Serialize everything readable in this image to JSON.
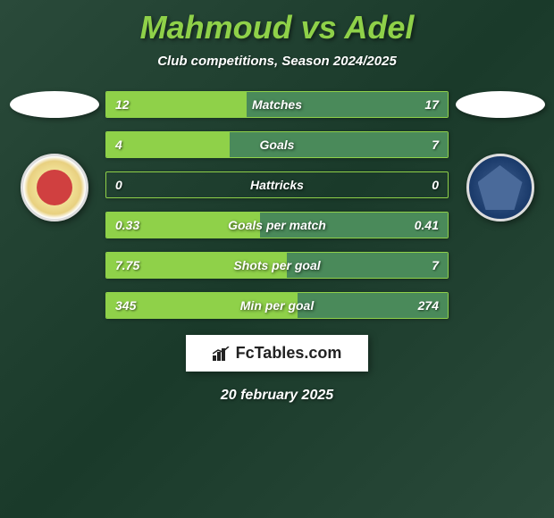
{
  "title": "Mahmoud vs Adel",
  "subtitle": "Club competitions, Season 2024/2025",
  "date": "20 february 2025",
  "footer_text": "FcTables.com",
  "colors": {
    "accent": "#8fd149",
    "background_dark": "#1a3a2a",
    "fill_right": "#4a8a5a",
    "text": "#ffffff"
  },
  "stats": [
    {
      "label": "Matches",
      "left_value": "12",
      "right_value": "17",
      "left_pct": 41,
      "right_pct": 59
    },
    {
      "label": "Goals",
      "left_value": "4",
      "right_value": "7",
      "left_pct": 36,
      "right_pct": 64
    },
    {
      "label": "Hattricks",
      "left_value": "0",
      "right_value": "0",
      "left_pct": 0,
      "right_pct": 0
    },
    {
      "label": "Goals per match",
      "left_value": "0.33",
      "right_value": "0.41",
      "left_pct": 45,
      "right_pct": 55
    },
    {
      "label": "Shots per goal",
      "left_value": "7.75",
      "right_value": "7",
      "left_pct": 53,
      "right_pct": 47
    },
    {
      "label": "Min per goal",
      "left_value": "345",
      "right_value": "274",
      "left_pct": 56,
      "right_pct": 44
    }
  ]
}
